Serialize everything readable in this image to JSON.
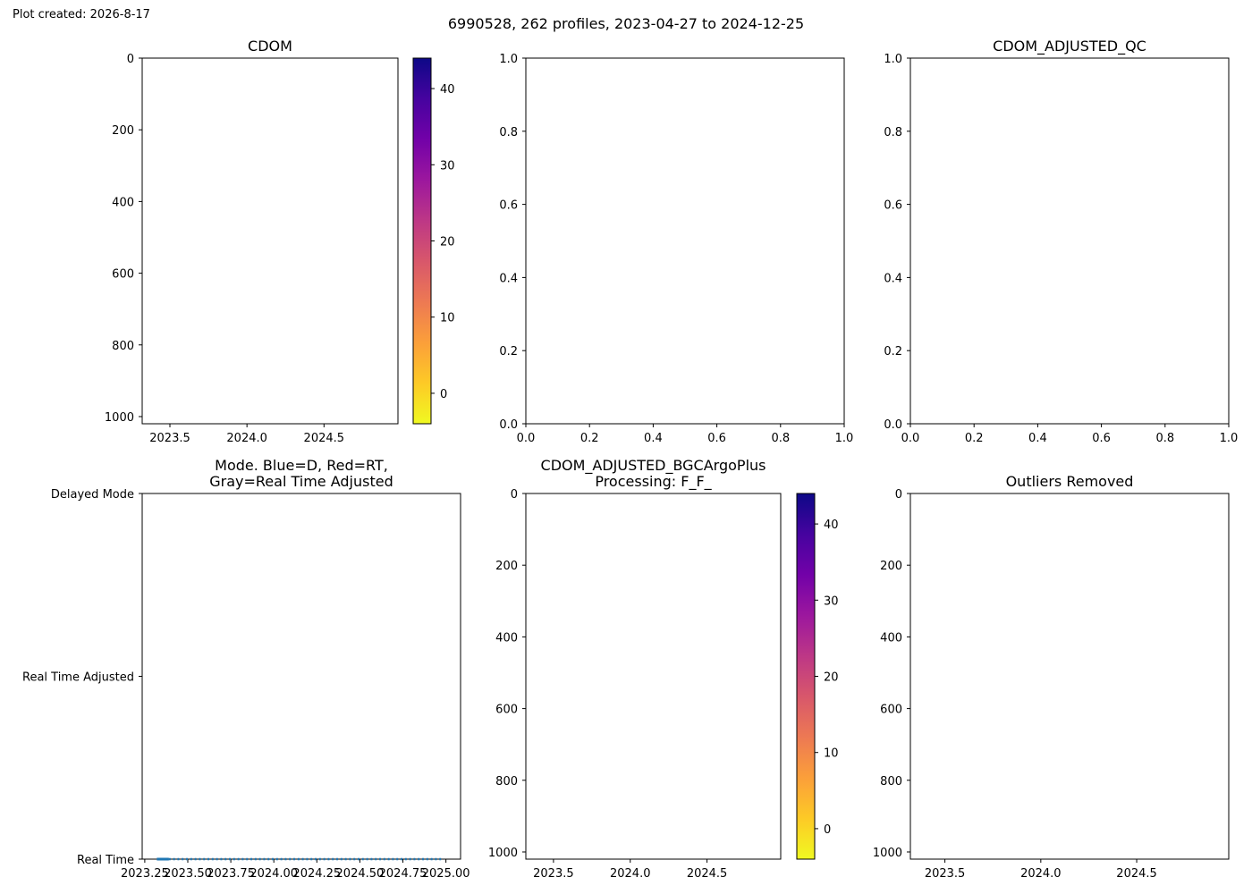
{
  "header": {
    "created": "Plot created: 2026-8-17",
    "suptitle": "6990528, 262 profiles, 2023-04-27 to 2024-12-25"
  },
  "colors": {
    "colormap": [
      "#f0f921",
      "#fdca26",
      "#fb9f3a",
      "#ed7953",
      "#d8576b",
      "#bd3786",
      "#9c179e",
      "#7201a8",
      "#46039f",
      "#0d0887"
    ],
    "series_line": "#1f77b4"
  },
  "chart_data": [
    {
      "id": "cdom",
      "type": "heatmap",
      "title": "CDOM",
      "xlabel": "",
      "ylabel": "",
      "xlim": [
        2023.32,
        2024.98
      ],
      "ylim": [
        1020,
        0
      ],
      "xticks": [
        2023.5,
        2024.0,
        2024.5
      ],
      "xtick_labels": [
        "2023.5",
        "2024.0",
        "2024.5"
      ],
      "yticks": [
        0,
        200,
        400,
        600,
        800,
        1000
      ],
      "ytick_labels": [
        "0",
        "200",
        "400",
        "600",
        "800",
        "1000"
      ],
      "colorbar": {
        "range": [
          -4,
          44
        ],
        "ticks": [
          0,
          10,
          20,
          30,
          40
        ],
        "tick_labels": [
          "0",
          "10",
          "20",
          "30",
          "40"
        ]
      },
      "values": []
    },
    {
      "id": "empty",
      "type": "scatter",
      "title": "",
      "xlim": [
        0,
        1
      ],
      "ylim": [
        0,
        1
      ],
      "xticks": [
        0,
        0.2,
        0.4,
        0.6,
        0.8,
        1.0
      ],
      "xtick_labels": [
        "0.0",
        "0.2",
        "0.4",
        "0.6",
        "0.8",
        "1.0"
      ],
      "yticks": [
        0,
        0.2,
        0.4,
        0.6,
        0.8,
        1.0
      ],
      "ytick_labels": [
        "0.0",
        "0.2",
        "0.4",
        "0.6",
        "0.8",
        "1.0"
      ],
      "values": []
    },
    {
      "id": "cdom_adjusted_qc",
      "type": "scatter",
      "title": "CDOM_ADJUSTED_QC",
      "xlim": [
        0,
        1
      ],
      "ylim": [
        0,
        1
      ],
      "xticks": [
        0,
        0.2,
        0.4,
        0.6,
        0.8,
        1.0
      ],
      "xtick_labels": [
        "0.0",
        "0.2",
        "0.4",
        "0.6",
        "0.8",
        "1.0"
      ],
      "yticks": [
        0,
        0.2,
        0.4,
        0.6,
        0.8,
        1.0
      ],
      "ytick_labels": [
        "0.0",
        "0.2",
        "0.4",
        "0.6",
        "0.8",
        "1.0"
      ],
      "values": []
    },
    {
      "id": "mode",
      "type": "line",
      "title_lines": [
        "Mode. Blue=D, Red=RT,",
        "Gray=Real Time Adjusted"
      ],
      "xlim": [
        2023.235,
        2025.085
      ],
      "ylim": [
        0,
        2
      ],
      "xticks": [
        2023.25,
        2023.5,
        2023.75,
        2024.0,
        2024.25,
        2024.5,
        2024.75,
        2025.0
      ],
      "xtick_labels": [
        "2023.25",
        "2023.50",
        "2023.75",
        "2024.00",
        "2024.25",
        "2024.50",
        "2024.75",
        "2025.00"
      ],
      "yticks": [
        0,
        1,
        2
      ],
      "ytick_labels": [
        "Real Time",
        "Real Time Adjusted",
        "Delayed Mode"
      ],
      "series": [
        {
          "mode": 0,
          "x_start": 2023.32,
          "x_end": 2024.98,
          "dense_until": 2023.39,
          "profiles": 262
        }
      ]
    },
    {
      "id": "cdom_bgc",
      "type": "heatmap",
      "title_lines": [
        "CDOM_ADJUSTED_BGCArgoPlus",
        "Processing: F_F_"
      ],
      "xlim": [
        2023.32,
        2024.98
      ],
      "ylim": [
        1020,
        0
      ],
      "xticks": [
        2023.5,
        2024.0,
        2024.5
      ],
      "xtick_labels": [
        "2023.5",
        "2024.0",
        "2024.5"
      ],
      "yticks": [
        0,
        200,
        400,
        600,
        800,
        1000
      ],
      "ytick_labels": [
        "0",
        "200",
        "400",
        "600",
        "800",
        "1000"
      ],
      "colorbar": {
        "range": [
          -4,
          44
        ],
        "ticks": [
          0,
          10,
          20,
          30,
          40
        ],
        "tick_labels": [
          "0",
          "10",
          "20",
          "30",
          "40"
        ]
      },
      "values": []
    },
    {
      "id": "outliers",
      "type": "heatmap",
      "title": "Outliers Removed",
      "xlim": [
        2023.32,
        2024.98
      ],
      "ylim": [
        1020,
        0
      ],
      "xticks": [
        2023.5,
        2024.0,
        2024.5
      ],
      "xtick_labels": [
        "2023.5",
        "2024.0",
        "2024.5"
      ],
      "yticks": [
        0,
        200,
        400,
        600,
        800,
        1000
      ],
      "ytick_labels": [
        "0",
        "200",
        "400",
        "600",
        "800",
        "1000"
      ],
      "values": []
    }
  ]
}
